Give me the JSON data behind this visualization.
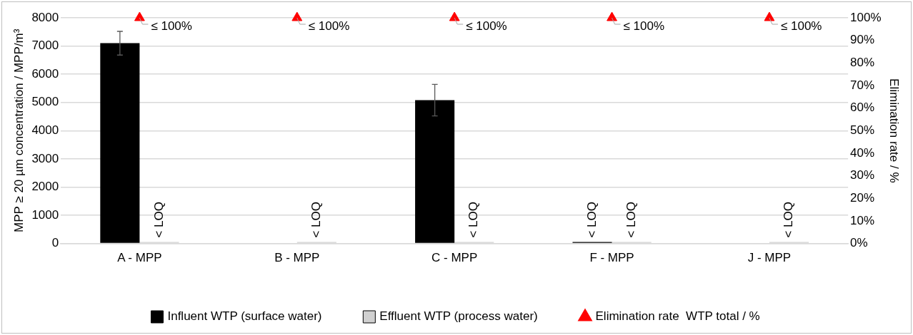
{
  "chart_data": {
    "type": "bar",
    "categories": [
      "A - MPP",
      "B - MPP",
      "C - MPP",
      "F - MPP",
      "J - MPP"
    ],
    "ylabel": "MPP ≥ 20 µm concentration / MPP/m³",
    "y2label": "Elimination rate / %",
    "series": [
      {
        "name": "Influent WTP (surface water)",
        "color": "#000000",
        "values": [
          7100,
          null,
          5080,
          0,
          null
        ],
        "errors": [
          420,
          null,
          560,
          null,
          null
        ],
        "value_labels": [
          null,
          null,
          null,
          "< LOQ",
          null
        ]
      },
      {
        "name": "Effluent WTP (process water)",
        "color": "#d0d0d0",
        "values": [
          0,
          0,
          0,
          0,
          0
        ],
        "value_labels": [
          "< LOQ",
          "< LOQ",
          "< LOQ",
          "< LOQ",
          "< LOQ"
        ]
      },
      {
        "name": "Elimination rate  WTP total / %",
        "type": "scatter",
        "axis": "y2",
        "marker": "triangle",
        "color": "#ff0000",
        "x": [
          "A - MPP",
          "B - MPP",
          "C - MPP",
          "F - MPP",
          "J - MPP"
        ],
        "values": [
          100,
          100,
          100,
          100,
          100
        ],
        "value_labels": [
          "≤ 100%",
          "≤ 100%",
          "≤ 100%",
          "≤ 100%",
          "≤ 100%"
        ]
      }
    ],
    "ylim": [
      0,
      8000
    ],
    "yticks": [
      0,
      1000,
      2000,
      3000,
      4000,
      5000,
      6000,
      7000,
      8000
    ],
    "y2lim": [
      0,
      100
    ],
    "y2ticks": [
      {
        "value": 0,
        "label": "0%"
      },
      {
        "value": 10,
        "label": "10%"
      },
      {
        "value": 20,
        "label": "20%"
      },
      {
        "value": 30,
        "label": "30%"
      },
      {
        "value": 40,
        "label": "40%"
      },
      {
        "value": 50,
        "label": "50%"
      },
      {
        "value": 60,
        "label": "60%"
      },
      {
        "value": 70,
        "label": "70%"
      },
      {
        "value": 80,
        "label": "80%"
      },
      {
        "value": 90,
        "label": "90%"
      },
      {
        "value": 100,
        "label": "100%"
      }
    ],
    "grid": "y",
    "legend": "bottom"
  }
}
